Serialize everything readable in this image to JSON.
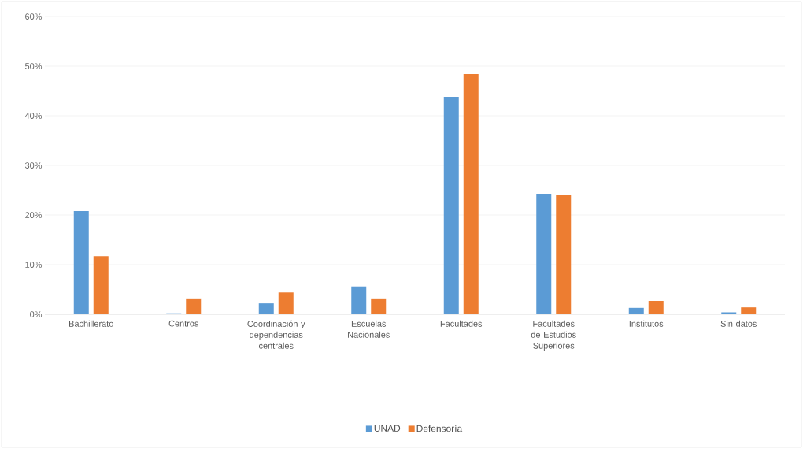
{
  "chart_data": {
    "type": "bar",
    "categories": [
      "Bachillerato",
      "Centros",
      "Coordinación y dependencias centrales",
      "Escuelas Nacionales",
      "Facultades",
      "Facultades de Estudios Superiores",
      "Institutos",
      "Sin datos"
    ],
    "series": [
      {
        "name": "UNAD",
        "color": "#5b9bd5",
        "values": [
          20.8,
          0.2,
          2.2,
          5.6,
          43.8,
          24.3,
          1.3,
          0.4
        ]
      },
      {
        "name": "Defensoría",
        "color": "#ed7d31",
        "values": [
          11.7,
          3.2,
          4.4,
          3.2,
          48.4,
          24.0,
          2.7,
          1.4
        ]
      }
    ],
    "ylim": [
      0,
      60
    ],
    "yticks": [
      {
        "value": 0,
        "label": "0%"
      },
      {
        "value": 10,
        "label": "10%"
      },
      {
        "value": 20,
        "label": "20%"
      },
      {
        "value": 30,
        "label": "30%"
      },
      {
        "value": 40,
        "label": "40%"
      },
      {
        "value": 50,
        "label": "50%"
      },
      {
        "value": 60,
        "label": "60%"
      }
    ],
    "grid": "y",
    "legend": "bottom"
  }
}
